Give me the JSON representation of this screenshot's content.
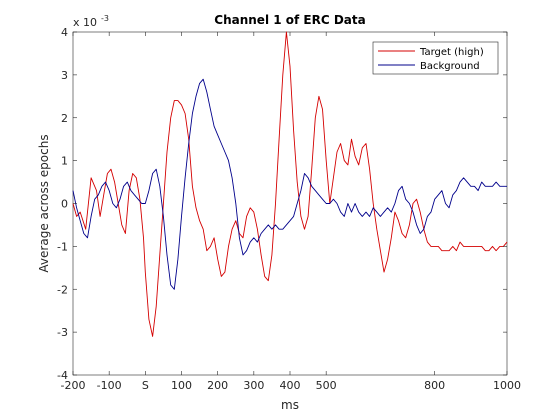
{
  "chart_data": {
    "type": "line",
    "title": "Channel 1 of ERC Data",
    "xlabel": "ms",
    "ylabel": "Average across epochs",
    "y_exponent_label": "x 10",
    "y_exponent": "-3",
    "xlim": [
      -200,
      1000
    ],
    "ylim": [
      -4,
      4
    ],
    "x_ticks": [
      -200,
      -100,
      0,
      100,
      200,
      300,
      400,
      500,
      800,
      1000
    ],
    "x_tick_labels": [
      "-200",
      "-100",
      "S",
      "100",
      "200",
      "300",
      "400",
      "500",
      "800",
      "1000"
    ],
    "y_ticks": [
      -4,
      -3,
      -2,
      -1,
      0,
      1,
      2,
      3,
      4
    ],
    "y_tick_labels": [
      "-4",
      "-3",
      "-2",
      "-1",
      "0",
      "1",
      "2",
      "3",
      "4"
    ],
    "legend_position": "top-right",
    "grid": false,
    "series": [
      {
        "name": "Target (high)",
        "color": "#d40000",
        "x": [
          -200,
          -190,
          -180,
          -165,
          -150,
          -135,
          -125,
          -115,
          -105,
          -95,
          -85,
          -75,
          -65,
          -55,
          -45,
          -35,
          -25,
          -15,
          -5,
          0,
          10,
          20,
          30,
          40,
          50,
          60,
          70,
          80,
          90,
          100,
          110,
          120,
          130,
          140,
          150,
          160,
          170,
          180,
          190,
          200,
          210,
          220,
          230,
          240,
          250,
          260,
          270,
          280,
          290,
          300,
          310,
          320,
          330,
          340,
          350,
          360,
          370,
          380,
          390,
          400,
          410,
          420,
          430,
          440,
          450,
          460,
          470,
          480,
          490,
          500,
          510,
          520,
          530,
          540,
          550,
          560,
          570,
          580,
          590,
          600,
          610,
          620,
          630,
          640,
          650,
          660,
          670,
          680,
          690,
          700,
          710,
          720,
          730,
          740,
          750,
          760,
          770,
          780,
          790,
          800,
          810,
          820,
          830,
          840,
          850,
          860,
          870,
          880,
          890,
          900,
          910,
          920,
          930,
          940,
          950,
          960,
          970,
          980,
          990,
          1000
        ],
        "values": [
          0.0,
          -0.3,
          -0.2,
          -0.6,
          0.6,
          0.3,
          -0.3,
          0.2,
          0.7,
          0.8,
          0.5,
          0.0,
          -0.5,
          -0.7,
          0.3,
          0.7,
          0.6,
          0.1,
          -0.8,
          -1.6,
          -2.7,
          -3.1,
          -2.4,
          -1.2,
          0.0,
          1.2,
          2.0,
          2.4,
          2.4,
          2.3,
          2.1,
          1.5,
          0.4,
          -0.1,
          -0.4,
          -0.6,
          -1.1,
          -1.0,
          -0.8,
          -1.3,
          -1.7,
          -1.6,
          -1.0,
          -0.6,
          -0.4,
          -0.7,
          -0.8,
          -0.3,
          -0.1,
          -0.2,
          -0.6,
          -1.2,
          -1.7,
          -1.8,
          -1.2,
          0.0,
          1.5,
          3.0,
          4.0,
          3.2,
          1.7,
          0.5,
          -0.3,
          -0.6,
          -0.3,
          0.8,
          2.0,
          2.5,
          2.2,
          1.0,
          0.0,
          0.6,
          1.2,
          1.4,
          1.0,
          0.9,
          1.5,
          1.1,
          0.9,
          1.3,
          1.4,
          0.8,
          0.0,
          -0.6,
          -1.1,
          -1.6,
          -1.3,
          -0.8,
          -0.2,
          -0.4,
          -0.7,
          -0.8,
          -0.5,
          0.0,
          0.1,
          -0.2,
          -0.6,
          -0.9,
          -1.0,
          -1.0,
          -1.0,
          -1.1,
          -1.1,
          -1.1,
          -1.0,
          -1.1,
          -0.9,
          -1.0,
          -1.0,
          -1.0,
          -1.0,
          -1.0,
          -1.0,
          -1.1,
          -1.1,
          -1.0,
          -1.1,
          -1.0,
          -1.0,
          -0.9
        ]
      },
      {
        "name": "Background",
        "color": "#00008b",
        "x": [
          -200,
          -190,
          -180,
          -170,
          -160,
          -150,
          -140,
          -130,
          -120,
          -110,
          -100,
          -90,
          -80,
          -70,
          -60,
          -50,
          -40,
          -30,
          -20,
          -10,
          0,
          10,
          20,
          30,
          40,
          50,
          60,
          70,
          80,
          90,
          100,
          110,
          120,
          130,
          140,
          150,
          160,
          170,
          180,
          190,
          200,
          210,
          220,
          230,
          240,
          250,
          260,
          270,
          280,
          290,
          300,
          310,
          320,
          330,
          340,
          350,
          360,
          370,
          380,
          390,
          400,
          410,
          420,
          430,
          440,
          450,
          460,
          470,
          480,
          490,
          500,
          510,
          520,
          530,
          540,
          550,
          560,
          570,
          580,
          590,
          600,
          610,
          620,
          630,
          640,
          650,
          660,
          670,
          680,
          690,
          700,
          710,
          720,
          730,
          740,
          750,
          760,
          770,
          780,
          790,
          800,
          810,
          820,
          830,
          840,
          850,
          860,
          870,
          880,
          890,
          900,
          910,
          920,
          930,
          940,
          950,
          960,
          970,
          980,
          990,
          1000
        ],
        "values": [
          0.3,
          -0.1,
          -0.4,
          -0.7,
          -0.8,
          -0.3,
          0.1,
          0.2,
          0.4,
          0.5,
          0.3,
          0.0,
          -0.1,
          0.1,
          0.4,
          0.5,
          0.3,
          0.2,
          0.1,
          0.0,
          0.0,
          0.3,
          0.7,
          0.8,
          0.4,
          -0.3,
          -1.2,
          -1.9,
          -2.0,
          -1.3,
          -0.3,
          0.6,
          1.4,
          2.1,
          2.5,
          2.8,
          2.9,
          2.6,
          2.2,
          1.8,
          1.6,
          1.4,
          1.2,
          1.0,
          0.6,
          0.0,
          -0.8,
          -1.2,
          -1.1,
          -0.9,
          -0.8,
          -0.9,
          -0.7,
          -0.6,
          -0.5,
          -0.6,
          -0.5,
          -0.6,
          -0.6,
          -0.5,
          -0.4,
          -0.3,
          0.0,
          0.3,
          0.7,
          0.6,
          0.4,
          0.3,
          0.2,
          0.1,
          0.0,
          0.0,
          0.1,
          0.0,
          -0.2,
          -0.3,
          0.0,
          -0.2,
          0.0,
          -0.2,
          -0.3,
          -0.2,
          -0.3,
          -0.1,
          -0.2,
          -0.3,
          -0.2,
          -0.1,
          -0.2,
          0.0,
          0.3,
          0.4,
          0.1,
          0.0,
          -0.2,
          -0.5,
          -0.7,
          -0.6,
          -0.3,
          -0.2,
          0.1,
          0.2,
          0.3,
          0.0,
          -0.1,
          0.2,
          0.3,
          0.5,
          0.6,
          0.5,
          0.4,
          0.4,
          0.3,
          0.5,
          0.4,
          0.4,
          0.4,
          0.5,
          0.4,
          0.4,
          0.4
        ]
      }
    ]
  }
}
